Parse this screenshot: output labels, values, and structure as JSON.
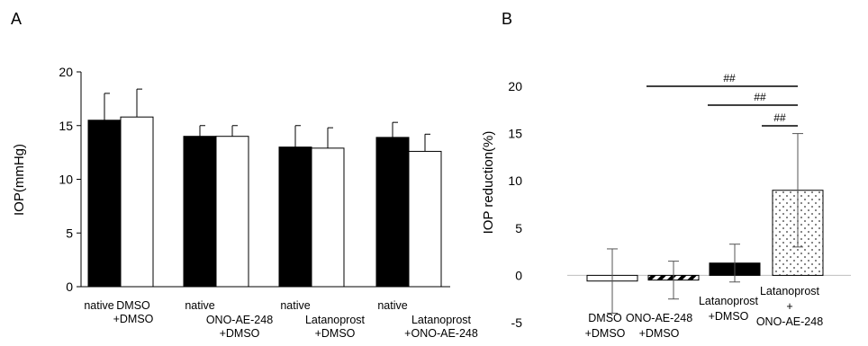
{
  "colors": {
    "black_bar": "#000000",
    "white_bar": "#ffffff",
    "axis": "#000000",
    "baseline": "#bfbfbf",
    "errorbar": "#555555"
  },
  "chart_data": [
    {
      "type": "bar",
      "panel_label": "A",
      "ylabel": "IOP(mmHg)",
      "ylim": [
        0,
        20
      ],
      "yticks": [
        0,
        5,
        10,
        15,
        20
      ],
      "grid": false,
      "groups": [
        {
          "label_black": "native",
          "label_white": "DMSO\n+DMSO",
          "black": 15.5,
          "black_err": 2.5,
          "white": 15.8,
          "white_err": 2.6
        },
        {
          "label_black": "native",
          "label_white": "ONO-AE-248\n+DMSO",
          "black": 14.0,
          "black_err": 1.0,
          "white": 14.0,
          "white_err": 1.0
        },
        {
          "label_black": "native",
          "label_white": "Latanoprost\n+DMSO",
          "black": 13.0,
          "black_err": 2.0,
          "white": 12.9,
          "white_err": 1.9
        },
        {
          "label_black": "native",
          "label_white": "Latanoprost\n+ONO-AE-248",
          "black": 13.9,
          "black_err": 1.4,
          "white": 12.6,
          "white_err": 1.6
        }
      ]
    },
    {
      "type": "bar",
      "panel_label": "B",
      "ylabel": "IOP reduction(%)",
      "ylim": [
        -5,
        20
      ],
      "yticks": [
        -5,
        0,
        5,
        10,
        15,
        20
      ],
      "grid": false,
      "categories": [
        "DMSO\n+DMSO",
        "ONO-AE-248\n+DMSO",
        "Latanoprost\n+DMSO",
        "Latanoprost\n+\nONO-AE-248"
      ],
      "values": [
        -0.6,
        -0.5,
        1.3,
        9.0
      ],
      "errors": [
        3.4,
        2.0,
        2.0,
        6.0
      ],
      "fills": [
        "white",
        "hatched",
        "black",
        "dotted"
      ],
      "significance": [
        {
          "from": 1,
          "to": 3,
          "label": "##"
        },
        {
          "from": 2,
          "to": 3,
          "label": "##"
        },
        {
          "from": 3,
          "to": 3,
          "label": "##"
        }
      ]
    }
  ]
}
